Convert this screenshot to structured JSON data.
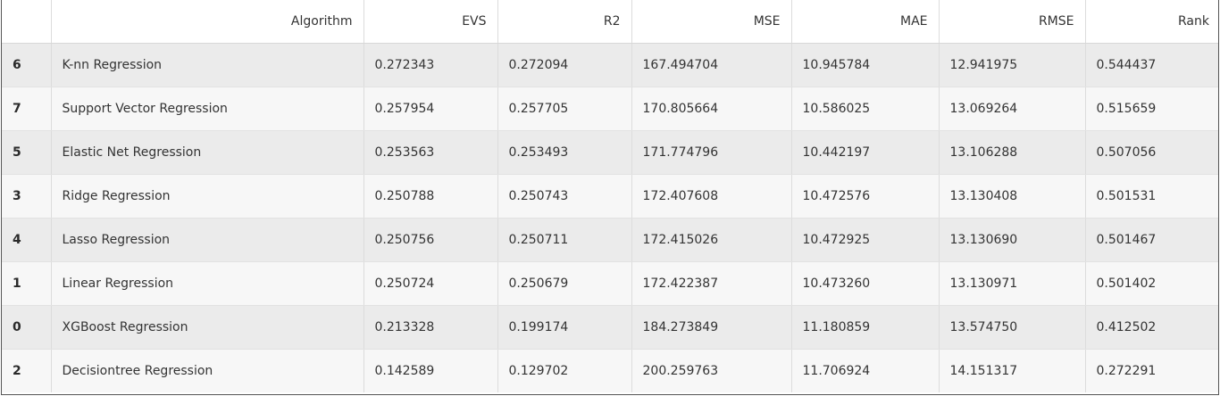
{
  "table": {
    "headers": {
      "index": "",
      "algorithm": "Algorithm",
      "evs": "EVS",
      "r2": "R2",
      "mse": "MSE",
      "mae": "MAE",
      "rmse": "RMSE",
      "rank": "Rank"
    },
    "rows": [
      {
        "index": "6",
        "algorithm": "K-nn Regression",
        "evs": "0.272343",
        "r2": "0.272094",
        "mse": "167.494704",
        "mae": "10.945784",
        "rmse": "12.941975",
        "rank": "0.544437"
      },
      {
        "index": "7",
        "algorithm": "Support Vector Regression",
        "evs": "0.257954",
        "r2": "0.257705",
        "mse": "170.805664",
        "mae": "10.586025",
        "rmse": "13.069264",
        "rank": "0.515659"
      },
      {
        "index": "5",
        "algorithm": "Elastic Net Regression",
        "evs": "0.253563",
        "r2": "0.253493",
        "mse": "171.774796",
        "mae": "10.442197",
        "rmse": "13.106288",
        "rank": "0.507056"
      },
      {
        "index": "3",
        "algorithm": "Ridge Regression",
        "evs": "0.250788",
        "r2": "0.250743",
        "mse": "172.407608",
        "mae": "10.472576",
        "rmse": "13.130408",
        "rank": "0.501531"
      },
      {
        "index": "4",
        "algorithm": "Lasso Regression",
        "evs": "0.250756",
        "r2": "0.250711",
        "mse": "172.415026",
        "mae": "10.472925",
        "rmse": "13.130690",
        "rank": "0.501467"
      },
      {
        "index": "1",
        "algorithm": "Linear Regression",
        "evs": "0.250724",
        "r2": "0.250679",
        "mse": "172.422387",
        "mae": "10.473260",
        "rmse": "13.130971",
        "rank": "0.501402"
      },
      {
        "index": "0",
        "algorithm": "XGBoost Regression",
        "evs": "0.213328",
        "r2": "0.199174",
        "mse": "184.273849",
        "mae": "11.180859",
        "rmse": "13.574750",
        "rank": "0.412502"
      },
      {
        "index": "2",
        "algorithm": "Decisiontree Regression",
        "evs": "0.142589",
        "r2": "0.129702",
        "mse": "200.259763",
        "mae": "11.706924",
        "rmse": "14.151317",
        "rank": "0.272291"
      }
    ]
  }
}
